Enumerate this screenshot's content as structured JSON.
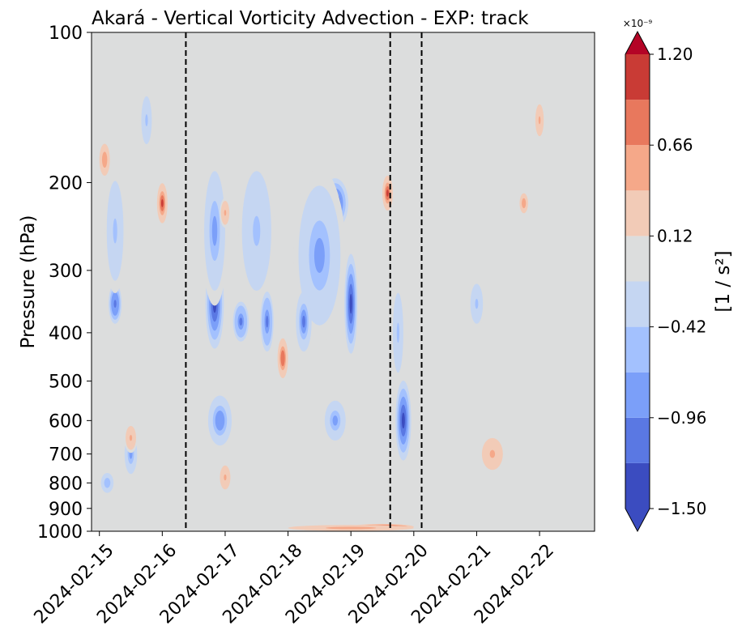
{
  "chart_data": {
    "type": "contourf",
    "title": "Akará - Vertical Vorticity Advection - EXP: track",
    "ylabel": "Pressure (hPa)",
    "y_scale": "log",
    "y_inverted": true,
    "ylim": [
      1000,
      100
    ],
    "yticks": [
      100,
      200,
      300,
      400,
      500,
      600,
      700,
      800,
      900,
      1000
    ],
    "ytick_labels": [
      "100",
      "200",
      "300",
      "400",
      "500",
      "600",
      "700",
      "800",
      "900",
      "1000"
    ],
    "xlim": [
      "2024-02-14T21:00",
      "2024-02-22T21:00"
    ],
    "xticks": [
      "2024-02-15",
      "2024-02-16",
      "2024-02-17",
      "2024-02-18",
      "2024-02-19",
      "2024-02-20",
      "2024-02-21",
      "2024-02-22"
    ],
    "vlines": [
      "2024-02-16T09:00",
      "2024-02-19T15:00",
      "2024-02-20T03:00"
    ],
    "grid": false,
    "colorbar": {
      "label": "[1 / s²]",
      "exponent_label": "×10⁻⁹",
      "min": -1.5,
      "max": 1.2,
      "extend": "both",
      "tick_values": [
        1.2,
        0.66,
        0.12,
        -0.42,
        -0.96,
        -1.5
      ],
      "tick_labels": [
        "1.20",
        "0.66",
        "0.12",
        "−0.42",
        "−0.96",
        "−1.50"
      ],
      "levels": [
        -1.5,
        -1.23,
        -0.96,
        -0.69,
        -0.42,
        -0.15,
        0.12,
        0.39,
        0.66,
        0.93,
        1.2
      ],
      "colors": [
        "#3b4cc0",
        "#5a78e3",
        "#7b9ff9",
        "#a3c1fe",
        "#c5d6f2",
        "#dcdddd",
        "#f2cbb7",
        "#f5a889",
        "#e8785d",
        "#c93b35",
        "#b40426"
      ],
      "extend_min_color": "#3b4cc0",
      "extend_max_color": "#b40426",
      "background_color": "#dcdddd"
    },
    "features": [
      {
        "date": "2024-02-15T06:00",
        "p": 350,
        "v": -1.2,
        "width_h": 5,
        "height_logp": 0.08
      },
      {
        "date": "2024-02-15T06:00",
        "p": 250,
        "v": -0.5,
        "width_h": 8,
        "height_logp": 0.25
      },
      {
        "date": "2024-02-15T12:00",
        "p": 700,
        "v": -0.7,
        "width_h": 6,
        "height_logp": 0.1
      },
      {
        "date": "2024-02-15T03:00",
        "p": 800,
        "v": -0.6,
        "width_h": 6,
        "height_logp": 0.05
      },
      {
        "date": "2024-02-15T18:00",
        "p": 150,
        "v": -0.5,
        "width_h": 5,
        "height_logp": 0.12
      },
      {
        "date": "2024-02-15T02:00",
        "p": 180,
        "v": 0.5,
        "width_h": 5,
        "height_logp": 0.08
      },
      {
        "date": "2024-02-16T00:00",
        "p": 220,
        "v": 0.95,
        "width_h": 4,
        "height_logp": 0.08
      },
      {
        "date": "2024-02-15T12:00",
        "p": 650,
        "v": 0.4,
        "width_h": 5,
        "height_logp": 0.06
      },
      {
        "date": "2024-02-16T20:00",
        "p": 350,
        "v": -1.25,
        "width_h": 7,
        "height_logp": 0.18
      },
      {
        "date": "2024-02-16T20:00",
        "p": 250,
        "v": -0.7,
        "width_h": 10,
        "height_logp": 0.3
      },
      {
        "date": "2024-02-16T22:00",
        "p": 600,
        "v": -0.9,
        "width_h": 9,
        "height_logp": 0.1
      },
      {
        "date": "2024-02-17T06:00",
        "p": 380,
        "v": -1.05,
        "width_h": 6,
        "height_logp": 0.08
      },
      {
        "date": "2024-02-17T12:00",
        "p": 250,
        "v": -0.5,
        "width_h": 14,
        "height_logp": 0.3
      },
      {
        "date": "2024-02-17T16:00",
        "p": 380,
        "v": -1.1,
        "width_h": 5,
        "height_logp": 0.12
      },
      {
        "date": "2024-02-17T00:00",
        "p": 230,
        "v": 0.4,
        "width_h": 4,
        "height_logp": 0.06
      },
      {
        "date": "2024-02-17T22:00",
        "p": 450,
        "v": 0.9,
        "width_h": 4,
        "height_logp": 0.08
      },
      {
        "date": "2024-02-17T00:00",
        "p": 780,
        "v": 0.45,
        "width_h": 5,
        "height_logp": 0.06
      },
      {
        "date": "2024-02-18T18:00",
        "p": 220,
        "v": -1.25,
        "width_h": 10,
        "height_logp": 0.1
      },
      {
        "date": "2024-02-18T12:00",
        "p": 280,
        "v": -0.7,
        "width_h": 20,
        "height_logp": 0.35
      },
      {
        "date": "2024-02-18T06:00",
        "p": 380,
        "v": -1.0,
        "width_h": 6,
        "height_logp": 0.12
      },
      {
        "date": "2024-02-19T00:00",
        "p": 350,
        "v": -1.3,
        "width_h": 5,
        "height_logp": 0.2
      },
      {
        "date": "2024-02-18T18:00",
        "p": 600,
        "v": -0.7,
        "width_h": 10,
        "height_logp": 0.1
      },
      {
        "date": "2024-02-19T14:00",
        "p": 210,
        "v": 0.95,
        "width_h": 4,
        "height_logp": 0.07
      },
      {
        "date": "2024-02-19T20:00",
        "p": 600,
        "v": -1.45,
        "width_h": 6,
        "height_logp": 0.16
      },
      {
        "date": "2024-02-19T18:00",
        "p": 400,
        "v": -0.5,
        "width_h": 5,
        "height_logp": 0.2
      },
      {
        "date": "2024-02-19T12:00",
        "p": 980,
        "v": 1.2,
        "width_h": 24,
        "height_logp": 0.012
      },
      {
        "date": "2024-02-19T00:00",
        "p": 985,
        "v": 0.6,
        "width_h": 48,
        "height_logp": 0.012
      },
      {
        "date": "2024-02-21T06:00",
        "p": 700,
        "v": 0.4,
        "width_h": 10,
        "height_logp": 0.08
      },
      {
        "date": "2024-02-22T00:00",
        "p": 150,
        "v": 0.4,
        "width_h": 4,
        "height_logp": 0.08
      },
      {
        "date": "2024-02-21T18:00",
        "p": 220,
        "v": 0.5,
        "width_h": 4,
        "height_logp": 0.05
      },
      {
        "date": "2024-02-21T00:00",
        "p": 350,
        "v": -0.45,
        "width_h": 6,
        "height_logp": 0.1
      }
    ]
  }
}
